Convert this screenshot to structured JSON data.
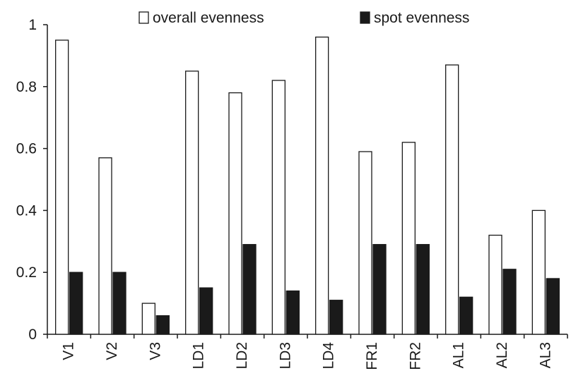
{
  "chart_data": {
    "type": "bar",
    "title": "",
    "xlabel": "",
    "ylabel": "",
    "categories": [
      "V1",
      "V2",
      "V3",
      "LD1",
      "LD2",
      "LD3",
      "LD4",
      "FR1",
      "FR2",
      "AL1",
      "AL2",
      "AL3"
    ],
    "series": [
      {
        "name": "overall evenness",
        "fill": "#ffffff",
        "values": [
          0.95,
          0.57,
          0.1,
          0.85,
          0.78,
          0.82,
          0.96,
          0.59,
          0.62,
          0.87,
          0.32,
          0.4
        ]
      },
      {
        "name": "spot evenness",
        "fill": "#1a1a1a",
        "values": [
          0.2,
          0.2,
          0.06,
          0.15,
          0.29,
          0.14,
          0.11,
          0.29,
          0.29,
          0.12,
          0.21,
          0.18
        ]
      }
    ],
    "ylim": [
      0,
      1
    ],
    "yticks": [
      "0",
      "0.2",
      "0.4",
      "0.6",
      "0.8",
      "1"
    ],
    "grid": false,
    "legend_position": "top"
  }
}
